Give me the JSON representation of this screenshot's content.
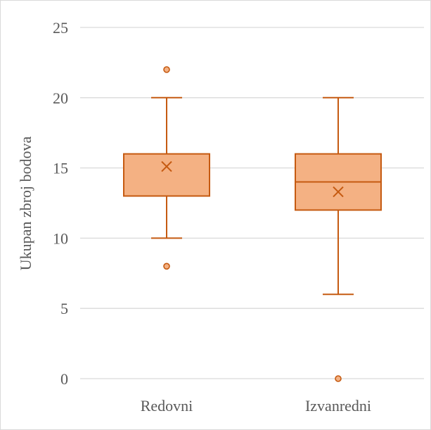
{
  "chart_data": {
    "type": "boxplot",
    "title": "",
    "xlabel": "",
    "ylabel": "Ukupan zbroj bodova",
    "ylim": [
      0,
      25
    ],
    "yticks": [
      0,
      5,
      10,
      15,
      20,
      25
    ],
    "grid": true,
    "legend": "none",
    "categories": [
      "Redovni",
      "Izvanredni"
    ],
    "series": [
      {
        "min": 10,
        "q1": 13,
        "median": 13,
        "q3": 16,
        "max": 20,
        "mean": 15.1,
        "outliers": [
          22,
          8
        ]
      },
      {
        "min": 6,
        "q1": 12,
        "median": 14,
        "q3": 16,
        "max": 20,
        "mean": 13.3,
        "outliers": [
          0
        ]
      }
    ],
    "colors": {
      "fill": "#f4b183",
      "stroke": "#c55a11",
      "grid": "#d9d9d9",
      "text": "#595959"
    }
  }
}
